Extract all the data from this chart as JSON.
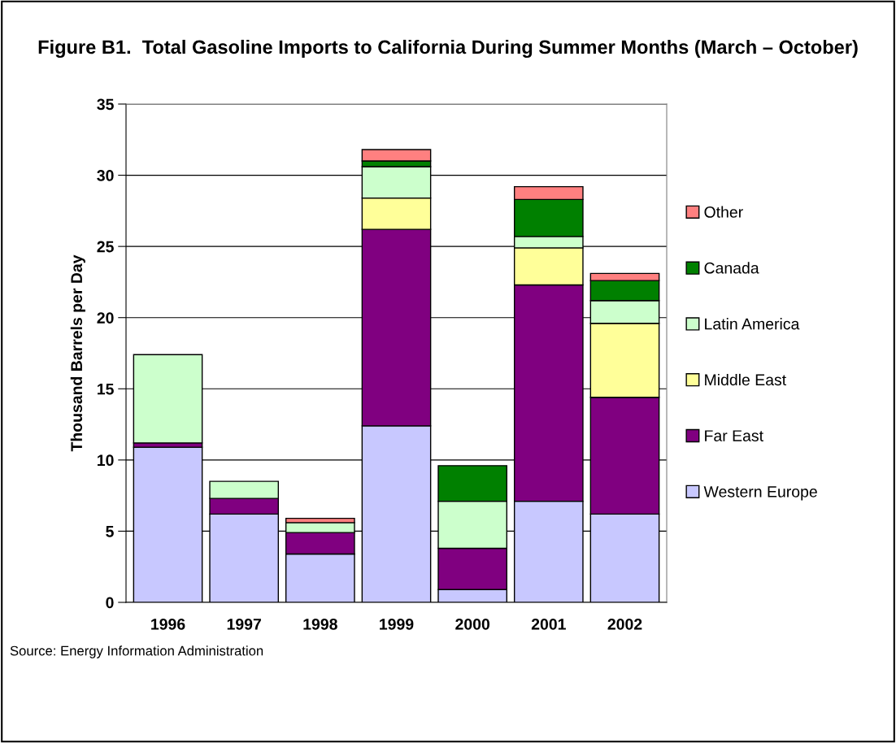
{
  "chart_data": {
    "type": "bar",
    "stacked": true,
    "title": "Figure B1.  Total Gasoline Imports to California During Summer Months (March – October)",
    "ylabel": "Thousand Barrels per Day",
    "categories": [
      "1996",
      "1997",
      "1998",
      "1999",
      "2000",
      "2001",
      "2002"
    ],
    "series": [
      {
        "name": "Western Europe",
        "color": "#c8c8ff",
        "values": [
          10.9,
          6.2,
          3.4,
          12.4,
          0.9,
          7.1,
          6.2
        ]
      },
      {
        "name": "Far East",
        "color": "#800080",
        "values": [
          0.3,
          1.1,
          1.5,
          13.8,
          2.9,
          15.2,
          8.2
        ]
      },
      {
        "name": "Middle East",
        "color": "#ffff99",
        "values": [
          null,
          null,
          null,
          2.2,
          null,
          2.6,
          5.2
        ]
      },
      {
        "name": "Latin America",
        "color": "#ccffcc",
        "values": [
          6.2,
          1.2,
          0.7,
          2.2,
          3.3,
          0.8,
          1.6
        ]
      },
      {
        "name": "Canada",
        "color": "#008000",
        "values": [
          null,
          null,
          null,
          0.4,
          2.5,
          2.6,
          1.4
        ]
      },
      {
        "name": "Other",
        "color": "#ff8080",
        "values": [
          null,
          null,
          0.3,
          0.8,
          null,
          0.9,
          0.5
        ]
      }
    ],
    "ylim": [
      0,
      35
    ],
    "yticks": [
      0,
      5,
      10,
      15,
      20,
      25,
      30,
      35
    ],
    "grid": "y",
    "legend": "right",
    "annotations": [
      "Source: Energy Information Administration"
    ]
  }
}
